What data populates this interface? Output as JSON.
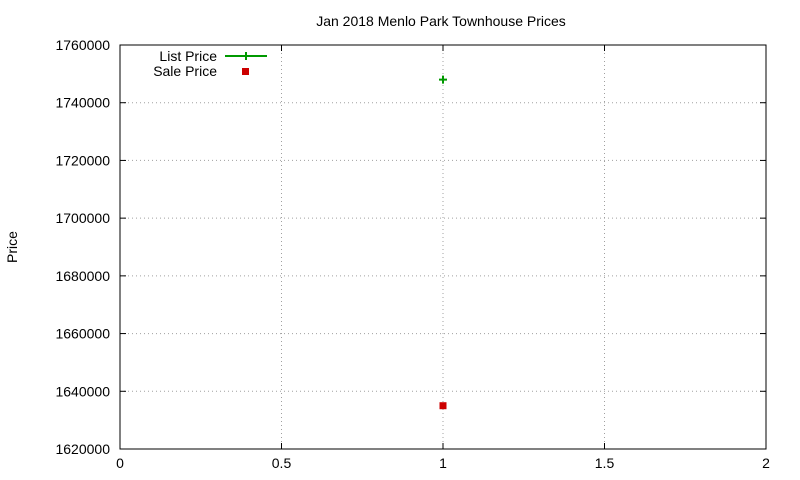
{
  "chart_data": {
    "type": "scatter",
    "title": "Jan 2018 Menlo Park Townhouse Prices",
    "xlabel": "",
    "ylabel": "Price",
    "xlim": [
      0,
      2
    ],
    "ylim": [
      1620000,
      1760000
    ],
    "x_ticks": [
      0,
      0.5,
      1,
      1.5,
      2
    ],
    "x_tick_labels": [
      "0",
      "0.5",
      "1",
      "1.5",
      "2"
    ],
    "y_ticks": [
      1620000,
      1640000,
      1660000,
      1680000,
      1700000,
      1720000,
      1740000,
      1760000
    ],
    "y_tick_labels": [
      "1620000",
      "1640000",
      "1660000",
      "1680000",
      "1700000",
      "1720000",
      "1740000",
      "1760000"
    ],
    "grid": true,
    "legend_position": "top-left",
    "series": [
      {
        "name": "List Price",
        "marker": "plus",
        "line": true,
        "color": "#009900",
        "points": [
          {
            "x": 1,
            "y": 1748000
          }
        ]
      },
      {
        "name": "Sale Price",
        "marker": "square",
        "line": false,
        "color": "#cc0000",
        "points": [
          {
            "x": 1,
            "y": 1635000
          }
        ]
      }
    ]
  }
}
